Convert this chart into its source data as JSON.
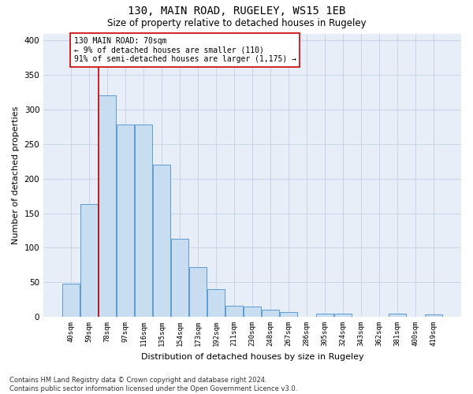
{
  "title": "130, MAIN ROAD, RUGELEY, WS15 1EB",
  "subtitle": "Size of property relative to detached houses in Rugeley",
  "xlabel": "Distribution of detached houses by size in Rugeley",
  "ylabel": "Number of detached properties",
  "categories": [
    "40sqm",
    "59sqm",
    "78sqm",
    "97sqm",
    "116sqm",
    "135sqm",
    "154sqm",
    "173sqm",
    "192sqm",
    "211sqm",
    "230sqm",
    "248sqm",
    "267sqm",
    "286sqm",
    "305sqm",
    "324sqm",
    "343sqm",
    "362sqm",
    "381sqm",
    "400sqm",
    "419sqm"
  ],
  "values": [
    48,
    163,
    320,
    278,
    278,
    220,
    113,
    72,
    40,
    16,
    15,
    10,
    7,
    0,
    5,
    5,
    0,
    0,
    5,
    0,
    3
  ],
  "bar_color": "#c9ddf0",
  "bar_edge_color": "#5b9bd5",
  "grid_color": "#c8d4e8",
  "background_color": "#e8eef8",
  "vline_color": "#cc0000",
  "annotation_text": "130 MAIN ROAD: 70sqm\n← 9% of detached houses are smaller (110)\n91% of semi-detached houses are larger (1,175) →",
  "annotation_box_color": "#ffffff",
  "annotation_box_edge": "#cc0000",
  "footnote": "Contains HM Land Registry data © Crown copyright and database right 2024.\nContains public sector information licensed under the Open Government Licence v3.0.",
  "ylim": [
    0,
    410
  ],
  "yticks": [
    0,
    50,
    100,
    150,
    200,
    250,
    300,
    350,
    400
  ]
}
